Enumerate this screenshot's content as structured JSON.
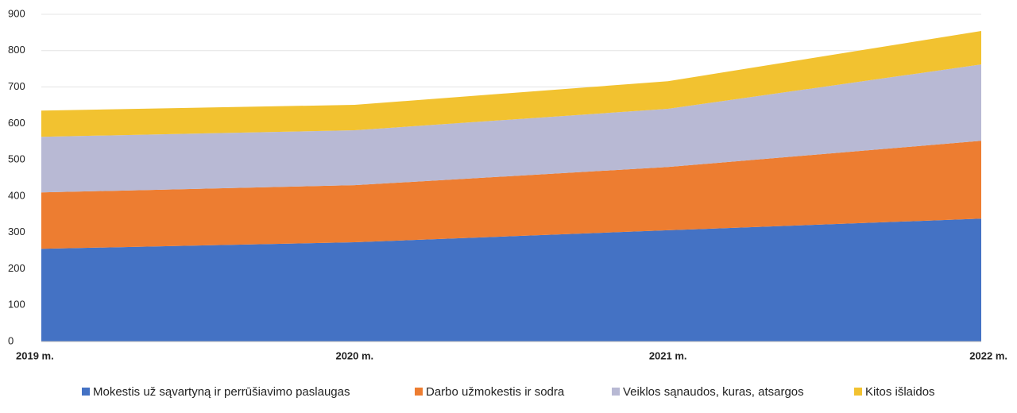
{
  "chart_data": {
    "type": "stacked_area",
    "categories": [
      "2019 m.",
      "2020 m.",
      "2021 m.",
      "2022 m."
    ],
    "series": [
      {
        "name": "Mokestis už sąvartyną ir perrūšiavimo paslaugas",
        "color": "#4472c4",
        "values": [
          255,
          273,
          306,
          338
        ]
      },
      {
        "name": "Darbo užmokestis ir sodra",
        "color": "#ed7d31",
        "values": [
          155,
          157,
          174,
          214
        ]
      },
      {
        "name": "Veiklos sąnaudos, kuras, atsargos",
        "color": "#b8b9d4",
        "values": [
          153,
          151,
          160,
          210
        ]
      },
      {
        "name": "Kitos išlaidos",
        "color": "#f2c230",
        "values": [
          72,
          70,
          76,
          92
        ]
      }
    ],
    "ylim": [
      0,
      900
    ],
    "yticks": [
      0,
      100,
      200,
      300,
      400,
      500,
      600,
      700,
      800,
      900
    ],
    "grid": true,
    "legend": "bottom"
  }
}
